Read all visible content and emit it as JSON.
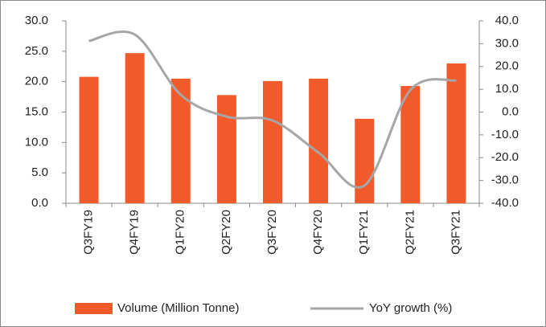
{
  "chart_data": {
    "type": "bar-line",
    "categories": [
      "Q3FY19",
      "Q4FY19",
      "Q1FY20",
      "Q2FY20",
      "Q3FY20",
      "Q4FY20",
      "Q1FY21",
      "Q2FY21",
      "Q3FY21"
    ],
    "series": [
      {
        "name": "Volume (Million Tonne)",
        "type": "bar",
        "color": "#f15a2b",
        "values": [
          20.8,
          24.7,
          20.5,
          17.8,
          20.1,
          20.5,
          13.9,
          19.3,
          23.0
        ]
      },
      {
        "name": "YoY growth (%)",
        "type": "line",
        "axis": "y2",
        "color": "#a6a6a6",
        "values": [
          31.2,
          34.0,
          7.6,
          -2.0,
          -3.7,
          -17.8,
          -32.2,
          9.7,
          13.9
        ]
      }
    ],
    "ylim": [
      0,
      30
    ],
    "yticks": [
      {
        "value": 0,
        "label": "0.0"
      },
      {
        "value": 5,
        "label": "5.0"
      },
      {
        "value": 10,
        "label": "10.0"
      },
      {
        "value": 15,
        "label": "15.0"
      },
      {
        "value": 20,
        "label": "20.0"
      },
      {
        "value": 25,
        "label": "25.0"
      },
      {
        "value": 30,
        "label": "30.0"
      }
    ],
    "y2lim": [
      -40,
      40
    ],
    "y2ticks": [
      {
        "value": -40,
        "label": "-40.0"
      },
      {
        "value": -30,
        "label": "-30.0"
      },
      {
        "value": -20,
        "label": "-20.0"
      },
      {
        "value": -10,
        "label": "-10.0"
      },
      {
        "value": 0,
        "label": "0.0"
      },
      {
        "value": 10,
        "label": "10.0"
      },
      {
        "value": 20,
        "label": "20.0"
      },
      {
        "value": 30,
        "label": "30.0"
      },
      {
        "value": 40,
        "label": "40.0"
      }
    ],
    "legend": "bottom"
  }
}
